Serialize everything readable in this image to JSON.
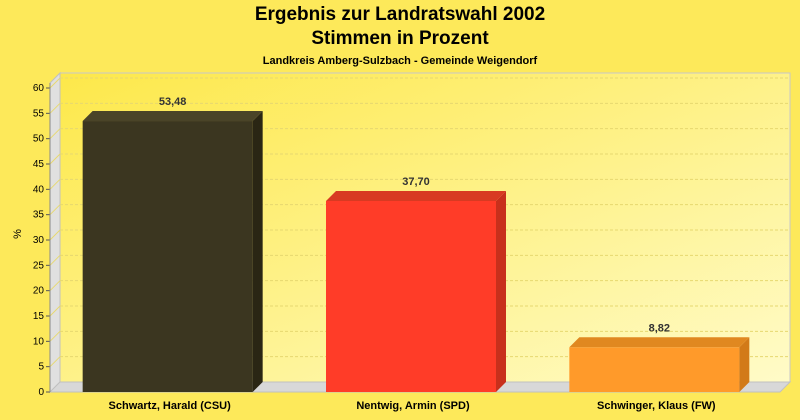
{
  "chart_data": {
    "type": "bar",
    "title": "Ergebnis zur Landratswahl 2002",
    "title2": "Stimmen in Prozent",
    "subtitle": "Landkreis Amberg-Sulzbach - Gemeinde Weigendorf",
    "ylabel": "%",
    "ylim": [
      0,
      60
    ],
    "yticks": [
      0,
      5,
      10,
      15,
      20,
      25,
      30,
      35,
      40,
      45,
      50,
      55,
      60
    ],
    "grid": true,
    "categories": [
      "Schwartz, Harald (CSU)",
      "Nentwig, Armin (SPD)",
      "Schwinger, Klaus (FW)"
    ],
    "values": [
      53.48,
      37.7,
      8.82
    ],
    "value_labels": [
      "53,48",
      "37,70",
      "8,82"
    ],
    "colors": [
      "#3b3620",
      "#ff3c28",
      "#ff9a2a"
    ],
    "side_colors": [
      "#2a2614",
      "#c8301c",
      "#d27a18"
    ],
    "top_colors": [
      "#4a4428",
      "#d83a22",
      "#e08820"
    ]
  }
}
